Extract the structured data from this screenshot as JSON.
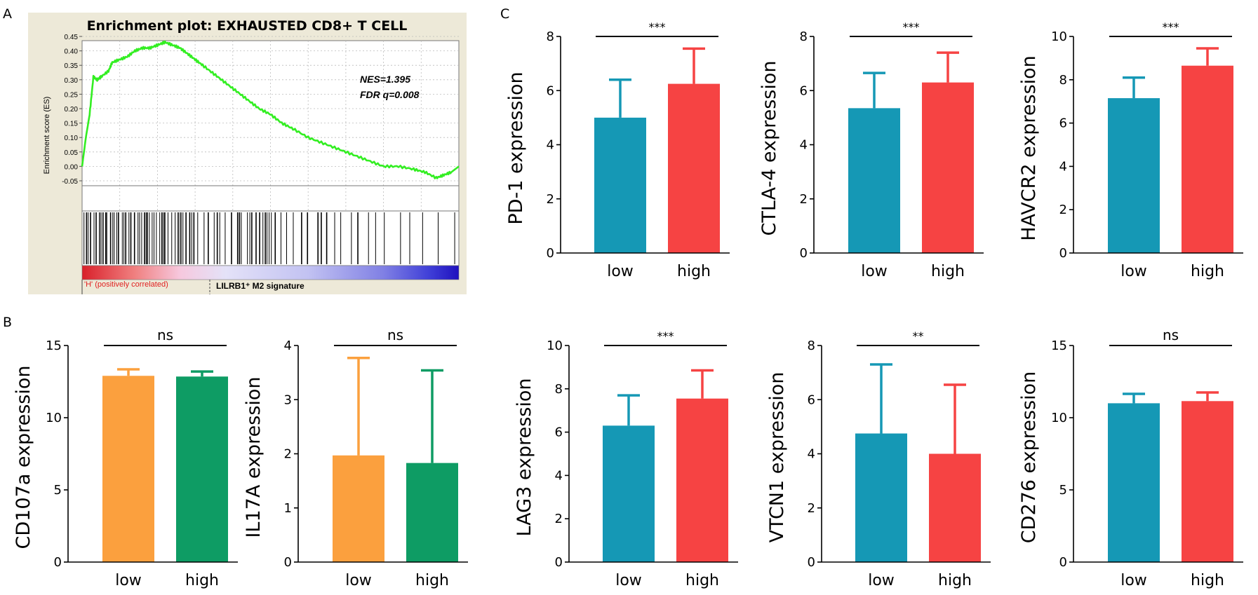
{
  "panel_labels": [
    "A",
    "B",
    "C"
  ],
  "colors": {
    "low_teal": "#1598B5",
    "high_red": "#F64343",
    "low_orange": "#FBA03E",
    "high_green": "#0E9C64",
    "es_line": "#33EE22",
    "gsea_bg": "#EDE9D8",
    "sig_line": "#000000"
  },
  "chart_data": [
    {
      "id": "gsea",
      "type": "line",
      "title": "Enrichment plot: EXHAUSTED CD8+ T CELL",
      "ylabel": "Enrichment score (ES)",
      "yticks": [
        "0.45",
        "0.40",
        "0.35",
        "0.30",
        "0.25",
        "0.20",
        "0.15",
        "0.10",
        "0.05",
        "0.00",
        "-0.05"
      ],
      "ylim": [
        -0.05,
        0.45
      ],
      "annotations": [
        "NES=1.395",
        "FDR q=0.008"
      ],
      "left_label": "'H' (positively correlated)",
      "right_label": "LILRB1⁺ M2 signature",
      "x": [
        0,
        0.01,
        0.02,
        0.03,
        0.04,
        0.05,
        0.07,
        0.08,
        0.1,
        0.12,
        0.14,
        0.16,
        0.18,
        0.2,
        0.22,
        0.24,
        0.26,
        0.28,
        0.3,
        0.32,
        0.35,
        0.38,
        0.41,
        0.44,
        0.47,
        0.5,
        0.53,
        0.56,
        0.6,
        0.64,
        0.68,
        0.72,
        0.76,
        0.8,
        0.84,
        0.88,
        0.91,
        0.94,
        0.96,
        0.98,
        1.0
      ],
      "es": [
        0.0,
        0.1,
        0.18,
        0.31,
        0.3,
        0.31,
        0.33,
        0.36,
        0.37,
        0.38,
        0.4,
        0.41,
        0.41,
        0.42,
        0.43,
        0.42,
        0.41,
        0.39,
        0.37,
        0.35,
        0.32,
        0.29,
        0.26,
        0.23,
        0.2,
        0.18,
        0.15,
        0.13,
        0.1,
        0.08,
        0.06,
        0.04,
        0.02,
        0.0,
        0.0,
        -0.01,
        -0.02,
        -0.04,
        -0.03,
        -0.02,
        0.0
      ]
    },
    {
      "id": "cd107a",
      "type": "bar",
      "ylabel": "CD107a expression",
      "categories": [
        "low",
        "high"
      ],
      "values": [
        12.9,
        12.85
      ],
      "errors": [
        0.45,
        0.35
      ],
      "ylim": [
        0,
        15
      ],
      "yticks": [
        "0",
        "5",
        "10",
        "15"
      ],
      "significance": "ns",
      "palette": "orange_green"
    },
    {
      "id": "il17a",
      "type": "bar",
      "ylabel": "IL17A expression",
      "categories": [
        "low",
        "high"
      ],
      "values": [
        1.97,
        1.83
      ],
      "errors": [
        1.8,
        1.71
      ],
      "ylim": [
        0,
        4
      ],
      "yticks": [
        "0",
        "1",
        "2",
        "3",
        "4"
      ],
      "significance": "ns",
      "palette": "orange_green"
    },
    {
      "id": "pd1",
      "type": "bar",
      "ylabel": "PD-1 expression",
      "categories": [
        "low",
        "high"
      ],
      "values": [
        5.0,
        6.25
      ],
      "errors": [
        1.4,
        1.3
      ],
      "ylim": [
        0,
        8
      ],
      "yticks": [
        "0",
        "2",
        "4",
        "6",
        "8"
      ],
      "significance": "***",
      "palette": "teal_red"
    },
    {
      "id": "ctla4",
      "type": "bar",
      "ylabel": "CTLA-4 expression",
      "categories": [
        "low",
        "high"
      ],
      "values": [
        5.35,
        6.3
      ],
      "errors": [
        1.3,
        1.1
      ],
      "ylim": [
        0,
        8
      ],
      "yticks": [
        "0",
        "2",
        "4",
        "6",
        "8"
      ],
      "significance": "***",
      "palette": "teal_red"
    },
    {
      "id": "havcr2",
      "type": "bar",
      "ylabel": "HAVCR2 expression",
      "categories": [
        "low",
        "high"
      ],
      "values": [
        7.15,
        8.65
      ],
      "errors": [
        0.95,
        0.8
      ],
      "ylim": [
        0,
        10
      ],
      "yticks": [
        "0",
        "2",
        "4",
        "6",
        "8",
        "10"
      ],
      "significance": "***",
      "palette": "teal_red"
    },
    {
      "id": "lag3",
      "type": "bar",
      "ylabel": "LAG3 expression",
      "categories": [
        "low",
        "high"
      ],
      "values": [
        6.3,
        7.55
      ],
      "errors": [
        1.4,
        1.3
      ],
      "ylim": [
        0,
        10
      ],
      "yticks": [
        "0",
        "2",
        "4",
        "6",
        "8",
        "10"
      ],
      "significance": "***",
      "palette": "teal_red"
    },
    {
      "id": "vtcn1",
      "type": "bar",
      "ylabel": "VTCN1 expression",
      "categories": [
        "low",
        "high"
      ],
      "values": [
        4.75,
        4.0
      ],
      "errors": [
        2.55,
        2.55
      ],
      "ylim": [
        0,
        8
      ],
      "yticks": [
        "0",
        "2",
        "4",
        "6",
        "8"
      ],
      "significance": "**",
      "palette": "teal_red"
    },
    {
      "id": "cd276",
      "type": "bar",
      "ylabel": "CD276 expression",
      "categories": [
        "low",
        "high"
      ],
      "values": [
        11.0,
        11.15
      ],
      "errors": [
        0.65,
        0.6
      ],
      "ylim": [
        0,
        15
      ],
      "yticks": [
        "0",
        "5",
        "10",
        "15"
      ],
      "significance": "ns",
      "palette": "teal_red"
    }
  ]
}
